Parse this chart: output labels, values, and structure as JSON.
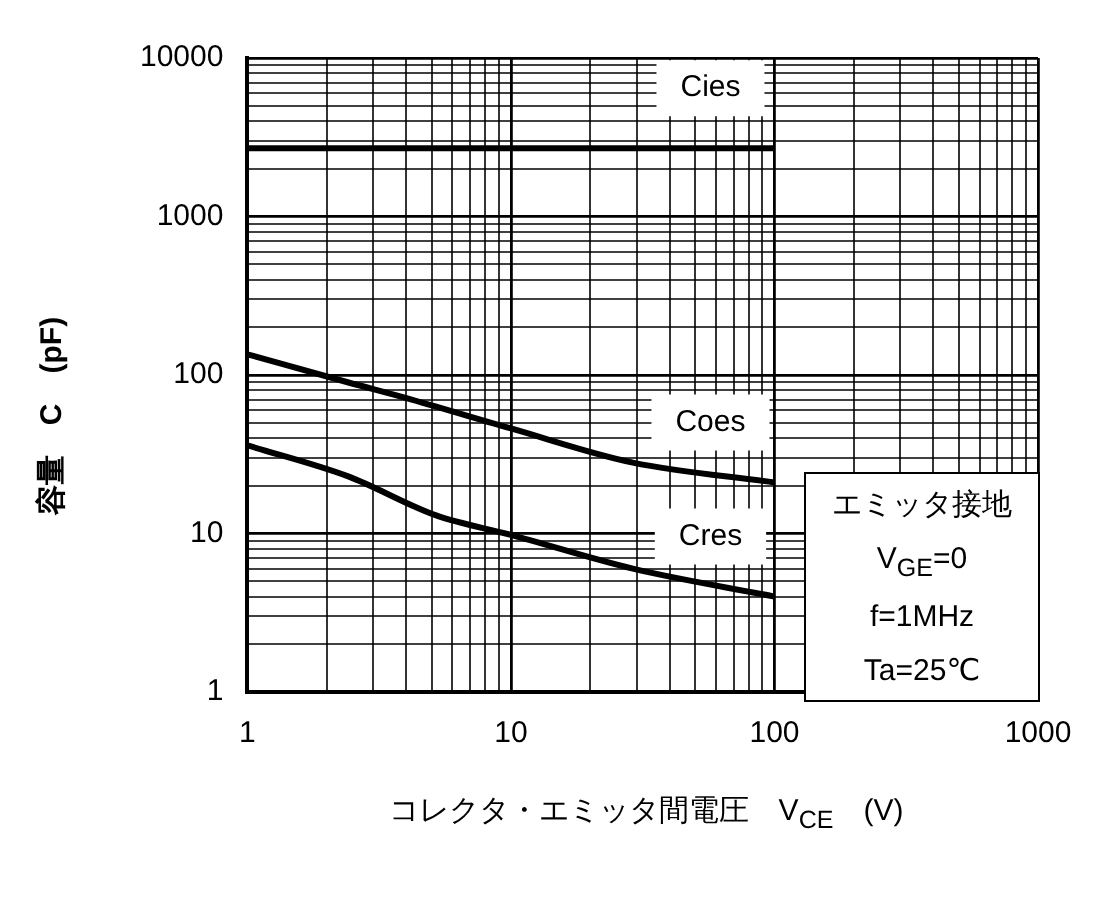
{
  "chart_data": {
    "type": "line",
    "xlabel": "コレクタ・エミッタ間電圧　V$_{CE}$　(V)",
    "ylabel": "容量　C　(pF)",
    "log": "xy",
    "xlim": [
      1,
      1000
    ],
    "xticks": [
      1,
      10,
      100,
      1000
    ],
    "ylim": [
      1,
      10000
    ],
    "yticks": [
      1,
      10,
      100,
      1000,
      10000
    ],
    "grid": true,
    "legend": false,
    "marker": "none",
    "line_style": "solid",
    "series": [
      {
        "name": "Cies",
        "color": "#000000",
        "x": [
          1,
          100
        ],
        "values": [
          2700,
          2700
        ]
      },
      {
        "name": "Coes",
        "color": "#000000",
        "x": [
          1,
          2.4,
          4.2,
          10,
          29,
          100
        ],
        "values": [
          135,
          90,
          70,
          46,
          28,
          21
        ]
      },
      {
        "name": "Cres",
        "color": "#000000",
        "x": [
          1,
          2.4,
          5.2,
          10,
          29,
          100
        ],
        "values": [
          36,
          23,
          13,
          9.8,
          6,
          4
        ]
      }
    ],
    "annotations": [
      "エミッタ接地",
      "V$_{GE}$=0",
      "f=1MHz",
      "Ta=25℃"
    ]
  }
}
